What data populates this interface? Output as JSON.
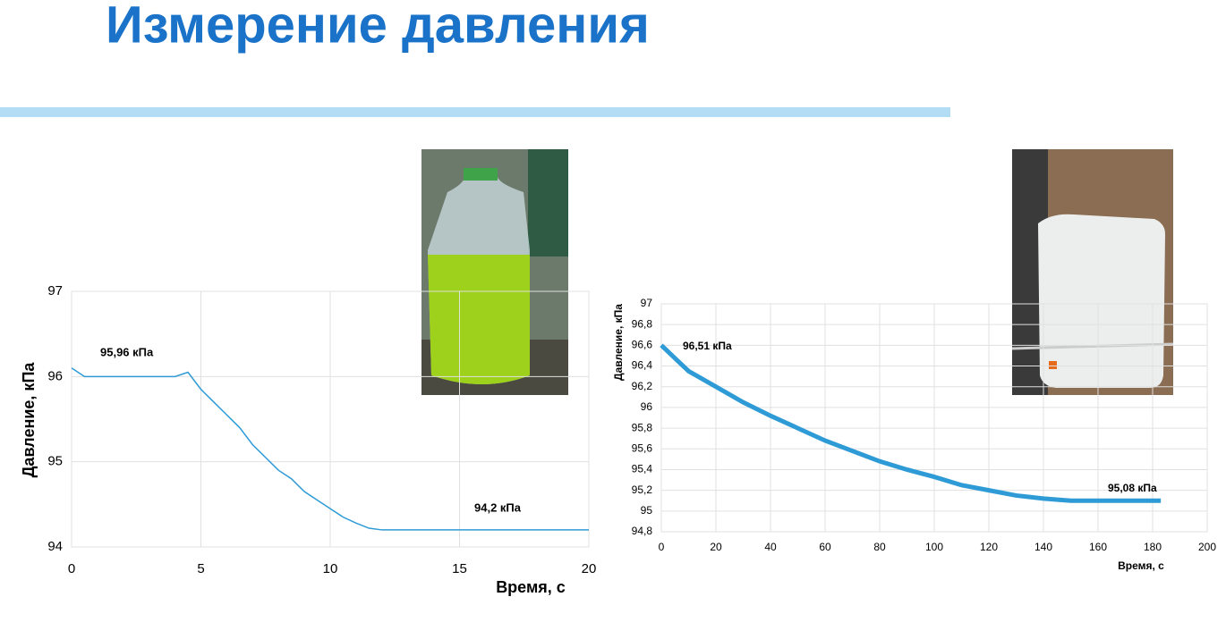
{
  "title": "Измерение давления",
  "chart_data": [
    {
      "type": "line",
      "ylabel": "Давление, кПа",
      "xlabel": "Время, с",
      "xlim": [
        0,
        20
      ],
      "xticks": [
        0,
        5,
        10,
        15,
        20
      ],
      "ylim": [
        94,
        97
      ],
      "yticks": [
        94,
        95,
        96,
        97
      ],
      "grid": true,
      "x": [
        0,
        0.5,
        1,
        1.5,
        2,
        2.5,
        3,
        3.5,
        4,
        4.5,
        5,
        5.5,
        6,
        6.5,
        7,
        7.5,
        8,
        8.5,
        9,
        9.5,
        10,
        10.5,
        11,
        11.5,
        12,
        12.5,
        13,
        13.5,
        14,
        14.5,
        15,
        15.5,
        16,
        16.5,
        17,
        17.5,
        18,
        18.5,
        19,
        19.5,
        20
      ],
      "series": [
        {
          "color": "#2e9bd6",
          "values": [
            96.1,
            96.0,
            96.0,
            96.0,
            96.0,
            96.0,
            96.0,
            96.0,
            96.0,
            96.05,
            95.85,
            95.7,
            95.55,
            95.4,
            95.2,
            95.05,
            94.9,
            94.8,
            94.65,
            94.55,
            94.45,
            94.35,
            94.28,
            94.22,
            94.2,
            94.2,
            94.2,
            94.2,
            94.2,
            94.2,
            94.2,
            94.2,
            94.2,
            94.2,
            94.2,
            94.2,
            94.2,
            94.2,
            94.2,
            94.2,
            94.2
          ]
        }
      ],
      "annotations": [
        "95,96 кПа",
        "94,2 кПа"
      ]
    },
    {
      "type": "line",
      "ylabel": "Давление, кПа",
      "xlabel": "Время, с",
      "xlim": [
        0,
        200
      ],
      "xticks": [
        0,
        20,
        40,
        60,
        80,
        100,
        120,
        140,
        160,
        180,
        200
      ],
      "ylim": [
        94.8,
        97
      ],
      "yticks": [
        {
          "value": 94.8,
          "label": "94,8"
        },
        95,
        {
          "value": 95.2,
          "label": "95,2"
        },
        {
          "value": 95.4,
          "label": "95,4"
        },
        {
          "value": 95.6,
          "label": "95,6"
        },
        {
          "value": 95.8,
          "label": "95,8"
        },
        96,
        {
          "value": 96.2,
          "label": "96,2"
        },
        {
          "value": 96.4,
          "label": "96,4"
        },
        {
          "value": 96.6,
          "label": "96,6"
        },
        {
          "value": 96.8,
          "label": "96,8"
        },
        97
      ],
      "grid": true,
      "x": [
        0,
        10,
        20,
        30,
        40,
        50,
        60,
        70,
        80,
        90,
        100,
        110,
        120,
        130,
        140,
        150,
        160,
        170,
        180,
        183
      ],
      "series": [
        {
          "color": "#2e9bd6",
          "values": [
            96.6,
            96.35,
            96.2,
            96.05,
            95.92,
            95.8,
            95.68,
            95.58,
            95.48,
            95.4,
            95.33,
            95.25,
            95.2,
            95.15,
            95.12,
            95.1,
            95.1,
            95.1,
            95.1,
            95.1
          ]
        }
      ],
      "annotations": [
        "96,51 кПа",
        "95,08 кПа"
      ]
    }
  ]
}
